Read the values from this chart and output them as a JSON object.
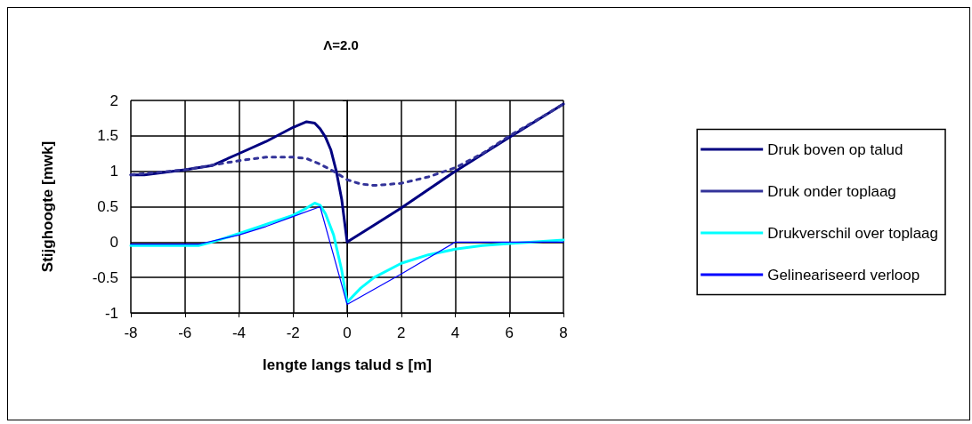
{
  "chart_data": {
    "type": "line",
    "title": "Λ=2.0",
    "xlabel": "lengte langs talud s [m]",
    "ylabel": "Stijghoogte [mwk]",
    "xlim": [
      -8,
      8
    ],
    "xticks": [
      -8,
      -6,
      -4,
      -2,
      0,
      2,
      4,
      6,
      8
    ],
    "ylim": [
      -1,
      2
    ],
    "yticks": [
      -1,
      -0.5,
      0,
      0.5,
      1,
      1.5,
      2
    ],
    "grid": true,
    "legend": "right",
    "marker": "none",
    "series": [
      {
        "name": "Druk boven op talud",
        "color": "#000080",
        "line_style": "solid",
        "x": [
          -8,
          -7.5,
          -6,
          -5,
          -4,
          -3,
          -2,
          -1.5,
          -1.2,
          -1,
          -0.8,
          -0.6,
          -0.4,
          -0.2,
          0,
          2,
          4,
          6,
          8
        ],
        "values": [
          0.95,
          0.95,
          1.02,
          1.08,
          1.25,
          1.42,
          1.62,
          1.7,
          1.68,
          1.6,
          1.48,
          1.3,
          1.0,
          0.6,
          0,
          0.48,
          1.0,
          1.48,
          1.95
        ]
      },
      {
        "name": "Druk onder toplaag",
        "color": "#333399",
        "line_style": "dashed",
        "x": [
          -8,
          -6,
          -4,
          -3,
          -2,
          -1.5,
          -1,
          -0.5,
          0,
          0.5,
          1,
          2,
          3,
          4,
          5,
          6,
          7,
          8
        ],
        "values": [
          0.95,
          1.02,
          1.15,
          1.2,
          1.2,
          1.18,
          1.1,
          1.0,
          0.88,
          0.82,
          0.8,
          0.83,
          0.92,
          1.05,
          1.25,
          1.5,
          1.72,
          1.95
        ]
      },
      {
        "name": "Drukverschil over toplaag",
        "color": "#00ffff",
        "line_style": "solid",
        "x": [
          -8,
          -5.5,
          -5,
          -4,
          -3,
          -2,
          -1.5,
          -1.2,
          -1,
          -0.8,
          -0.5,
          -0.2,
          0,
          0.5,
          1,
          2,
          3,
          4,
          5,
          6,
          8
        ],
        "values": [
          -0.05,
          -0.05,
          0,
          0.12,
          0.25,
          0.38,
          0.48,
          0.55,
          0.52,
          0.4,
          0.1,
          -0.4,
          -0.85,
          -0.65,
          -0.5,
          -0.3,
          -0.18,
          -0.1,
          -0.05,
          -0.02,
          0.03
        ]
      },
      {
        "name": "Gelineariseerd verloop",
        "color": "#0000ff",
        "line_style": "solid",
        "x": [
          -8,
          -5.5,
          -4,
          -3,
          -2,
          -1,
          0,
          2,
          4,
          6,
          8
        ],
        "values": [
          -0.03,
          -0.03,
          0.1,
          0.22,
          0.36,
          0.5,
          -0.88,
          -0.45,
          0,
          0,
          0
        ]
      }
    ]
  }
}
